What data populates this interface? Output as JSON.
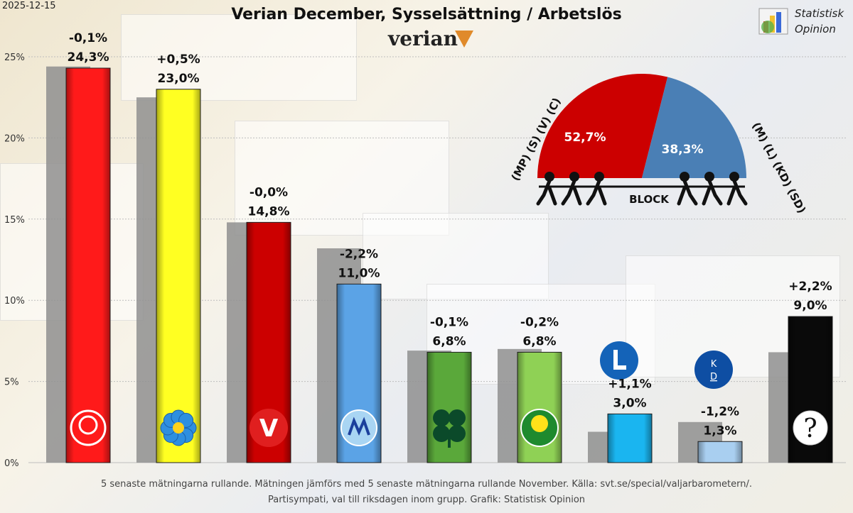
{
  "date": "2025-12-15",
  "title": "Verian December, Sysselsättning / Arbetslös",
  "brand": "verian",
  "logo": {
    "line1": "Statistisk",
    "line2": "Opinion"
  },
  "footer": {
    "line1": "5 senaste mätningarna rullande.  Mätningen jämförs med 5 senaste mätningarna rullande November.  Källa: svt.se/special/valjarbarometern/.",
    "line2": "Partisympati,  val till riksdagen inom grupp.  Grafik: Statistisk Opinion"
  },
  "chart_data": {
    "type": "bar",
    "ylim": [
      0,
      25
    ],
    "yticks": [
      "0%",
      "5%",
      "10%",
      "15%",
      "20%",
      "25%"
    ],
    "grid": true,
    "categories": [
      "S",
      "SD",
      "V",
      "M",
      "C",
      "MP",
      "L",
      "KD",
      "Övriga"
    ],
    "series": [
      {
        "values": [
          24.3,
          23.0,
          14.8,
          11.0,
          6.8,
          6.8,
          3.0,
          1.3,
          9.0
        ]
      },
      {
        "values": [
          24.4,
          22.5,
          14.8,
          13.2,
          6.9,
          7.0,
          1.9,
          2.5,
          6.8
        ]
      }
    ],
    "value_labels": [
      "24,3%",
      "23,0%",
      "14,8%",
      "11,0%",
      "6,8%",
      "6,8%",
      "3,0%",
      "1,3%",
      "9,0%"
    ],
    "change_labels": [
      "-0,1%",
      "+0,5%",
      "-0,0%",
      "-2,2%",
      "-0,1%",
      "-0,2%",
      "+1,1%",
      "-1,2%",
      "+2,2%"
    ],
    "colors": [
      "#ff1a1a",
      "#ffff22",
      "#cc0000",
      "#5ba3e6",
      "#5aa83a",
      "#8fd155",
      "#1ab5f0",
      "#a9cff0",
      "#0a0a0a"
    ],
    "party_icons": [
      "rose-icon",
      "flower-icon",
      "v-icon",
      "m-icon",
      "clover-icon",
      "dandelion-icon",
      "l-icon",
      "kd-icon",
      "question-icon"
    ]
  },
  "block_chart": {
    "type": "pie",
    "values": [
      52.7,
      38.3
    ],
    "labels": [
      "52,7%",
      "38,3%"
    ],
    "colors": [
      "#cc0000",
      "#4a7fb5"
    ],
    "left_group": "(MP) (S) (V) (C)",
    "right_group": "(M) (L) (KD) (SD)",
    "center_label": "BLOCK"
  }
}
